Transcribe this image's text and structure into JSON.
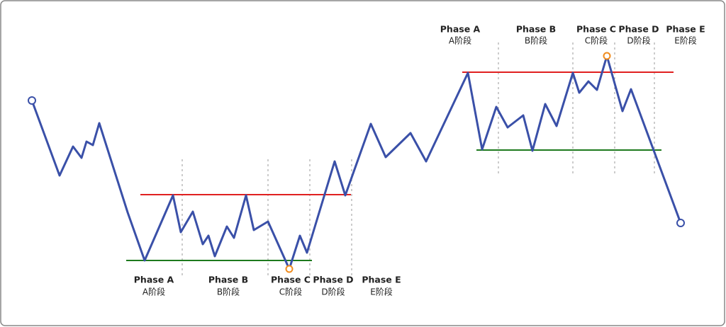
{
  "lower_phases": [
    {
      "title": "Phase A",
      "subtitle": "A阶段"
    },
    {
      "title": "Phase B",
      "subtitle": "B阶段"
    },
    {
      "title": "Phase C",
      "subtitle": "C阶段"
    },
    {
      "title": "Phase D",
      "subtitle": "D阶段"
    },
    {
      "title": "Phase E",
      "subtitle": "E阶段"
    }
  ],
  "upper_phases": [
    {
      "title": "Phase A",
      "subtitle": "A阶段"
    },
    {
      "title": "Phase B",
      "subtitle": "B阶段"
    },
    {
      "title": "Phase C",
      "subtitle": "C阶段"
    },
    {
      "title": "Phase D",
      "subtitle": "D阶段"
    },
    {
      "title": "Phase E",
      "subtitle": "E阶段"
    }
  ]
}
